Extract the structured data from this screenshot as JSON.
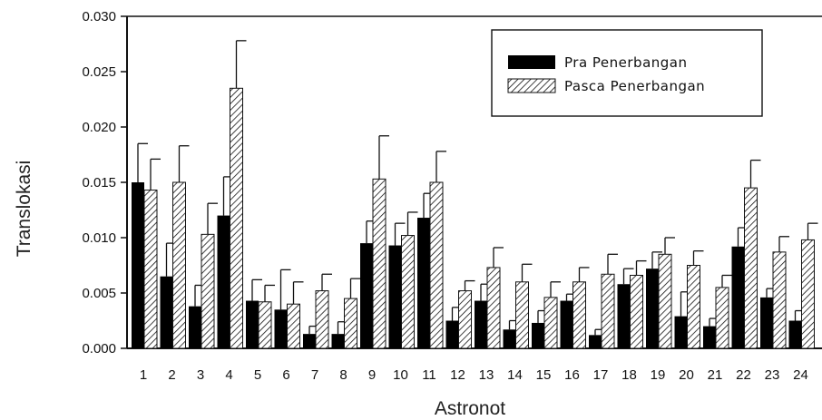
{
  "chart_data": {
    "type": "bar",
    "xlabel": "Astronot",
    "ylabel": "Translokasi",
    "ylim": [
      0,
      0.03
    ],
    "yticks": [
      "0.000",
      "0.005",
      "0.010",
      "0.015",
      "0.020",
      "0.025",
      "0.030"
    ],
    "categories": [
      "1",
      "2",
      "3",
      "4",
      "5",
      "6",
      "7",
      "8",
      "9",
      "10",
      "11",
      "12",
      "13",
      "14",
      "15",
      "16",
      "17",
      "18",
      "19",
      "20",
      "21",
      "22",
      "23",
      "24"
    ],
    "legend_position": "top-right",
    "series": [
      {
        "name": "Pra Penerbangan",
        "fill": "solid",
        "color": "#000000",
        "values": [
          0.015,
          0.0065,
          0.0038,
          0.012,
          0.0043,
          0.0035,
          0.0013,
          0.0013,
          0.0095,
          0.0093,
          0.0118,
          0.0025,
          0.0043,
          0.0017,
          0.0023,
          0.0043,
          0.0012,
          0.0058,
          0.0072,
          0.0029,
          0.002,
          0.0092,
          0.0046,
          0.0025
        ],
        "error": [
          0.0035,
          0.003,
          0.0019,
          0.0035,
          0.0019,
          0.0036,
          0.0007,
          0.0011,
          0.002,
          0.002,
          0.0022,
          0.0012,
          0.0015,
          0.0008,
          0.0011,
          0.0006,
          0.0005,
          0.0014,
          0.0015,
          0.0022,
          0.0007,
          0.0017,
          0.0008,
          0.0009
        ]
      },
      {
        "name": "Pasca Penerbangan",
        "fill": "hatched",
        "color": "#000000",
        "values": [
          0.0143,
          0.015,
          0.0103,
          0.0235,
          0.0042,
          0.004,
          0.0052,
          0.0045,
          0.0153,
          0.0102,
          0.015,
          0.0052,
          0.0073,
          0.006,
          0.0046,
          0.006,
          0.0067,
          0.0066,
          0.0085,
          0.0075,
          0.0055,
          0.0145,
          0.0087,
          0.0098
        ],
        "error": [
          0.0028,
          0.0033,
          0.0028,
          0.0043,
          0.0015,
          0.002,
          0.0015,
          0.0018,
          0.0039,
          0.0021,
          0.0028,
          0.0009,
          0.0018,
          0.0016,
          0.0014,
          0.0013,
          0.0018,
          0.0013,
          0.0015,
          0.0013,
          0.0011,
          0.0025,
          0.0014,
          0.0015
        ]
      }
    ]
  }
}
